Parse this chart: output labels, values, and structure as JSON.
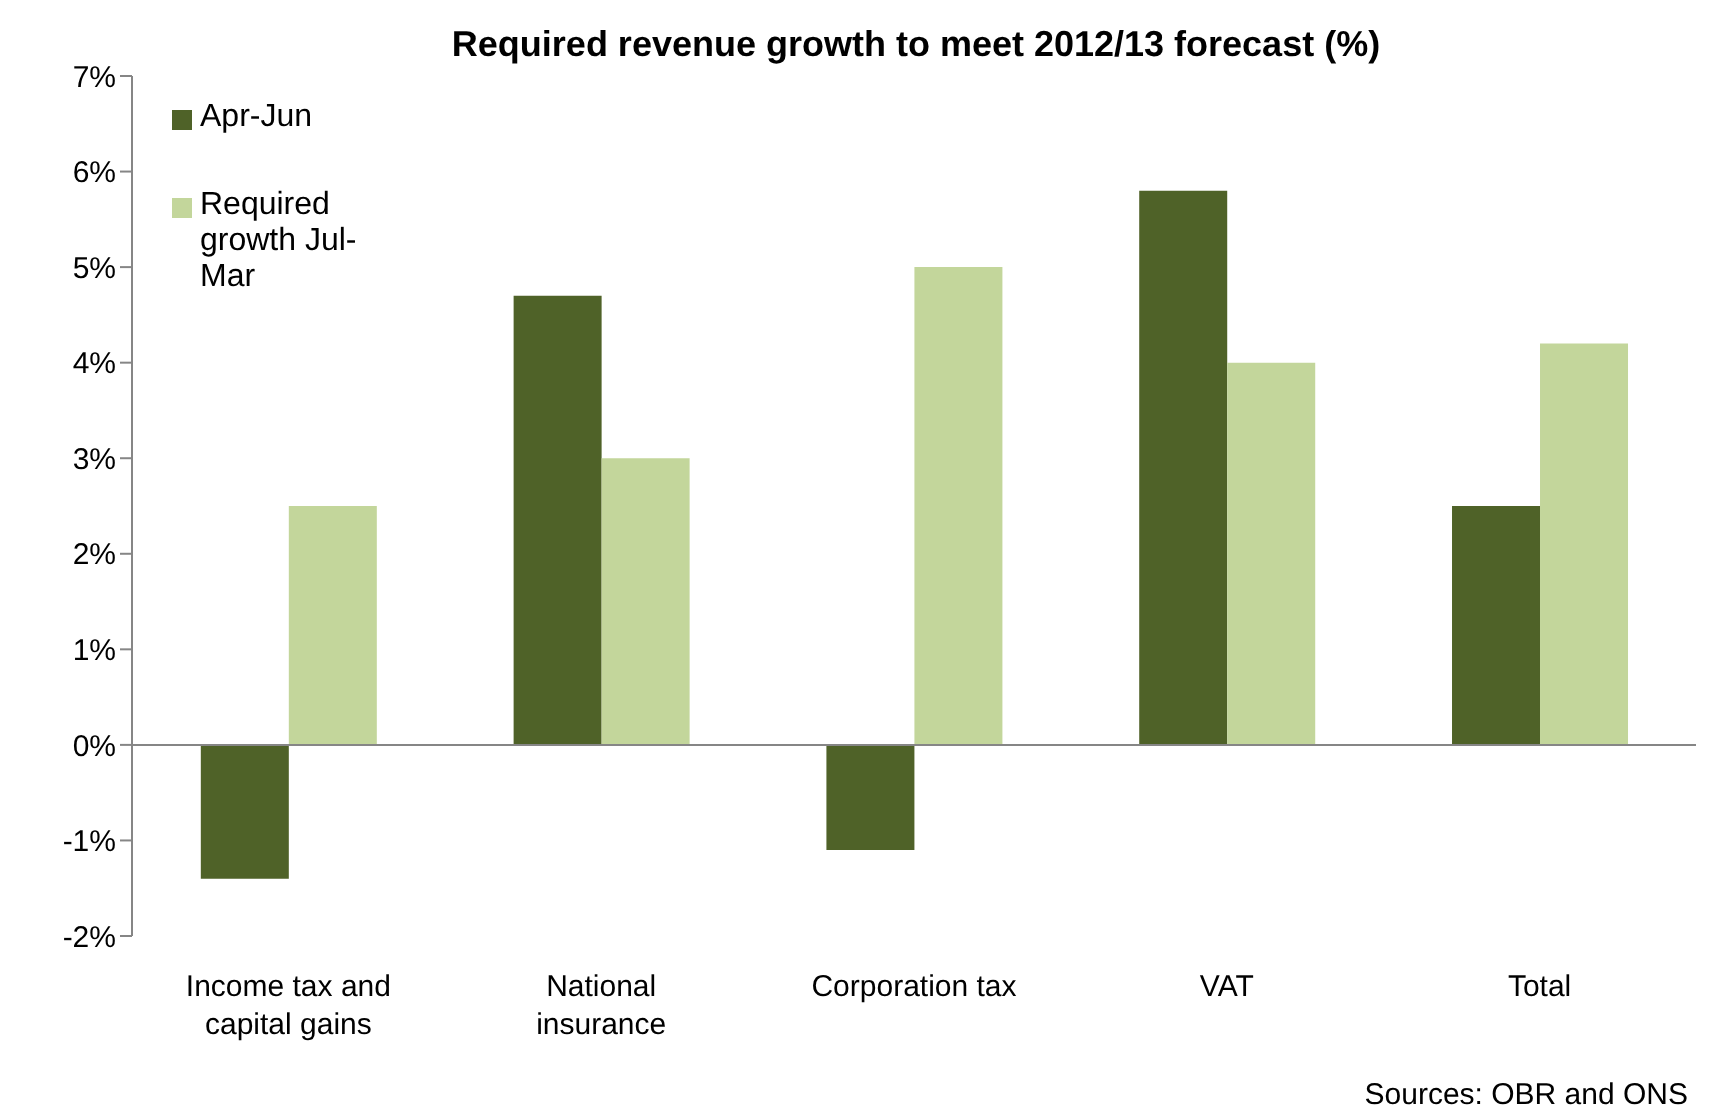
{
  "chart_data": {
    "type": "bar",
    "title": "Required revenue growth to meet 2012/13 forecast (%)",
    "categories": [
      "Income tax and capital gains",
      "National insurance",
      "Corporation tax",
      "VAT",
      "Total"
    ],
    "series": [
      {
        "name": "Apr-Jun",
        "color": "#4f6228",
        "values": [
          -1.4,
          4.7,
          -1.1,
          5.8,
          2.5
        ]
      },
      {
        "name": "Required growth Jul-Mar",
        "color": "#c3d69b",
        "values": [
          2.5,
          3.0,
          5.0,
          4.0,
          4.2
        ]
      }
    ],
    "ylim": [
      -2,
      7
    ],
    "yticks": [
      {
        "value": -2,
        "label": "-2%"
      },
      {
        "value": -1,
        "label": "-1%"
      },
      {
        "value": 0,
        "label": "0%"
      },
      {
        "value": 1,
        "label": "1%"
      },
      {
        "value": 2,
        "label": "2%"
      },
      {
        "value": 3,
        "label": "3%"
      },
      {
        "value": 4,
        "label": "4%"
      },
      {
        "value": 5,
        "label": "5%"
      },
      {
        "value": 6,
        "label": "6%"
      },
      {
        "value": 7,
        "label": "7%"
      }
    ],
    "ref_lines": [
      {
        "axis": "y",
        "value": 0,
        "color": "#868686"
      }
    ],
    "legend": "top left",
    "annotations": [
      "Sources: OBR and ONS"
    ]
  }
}
